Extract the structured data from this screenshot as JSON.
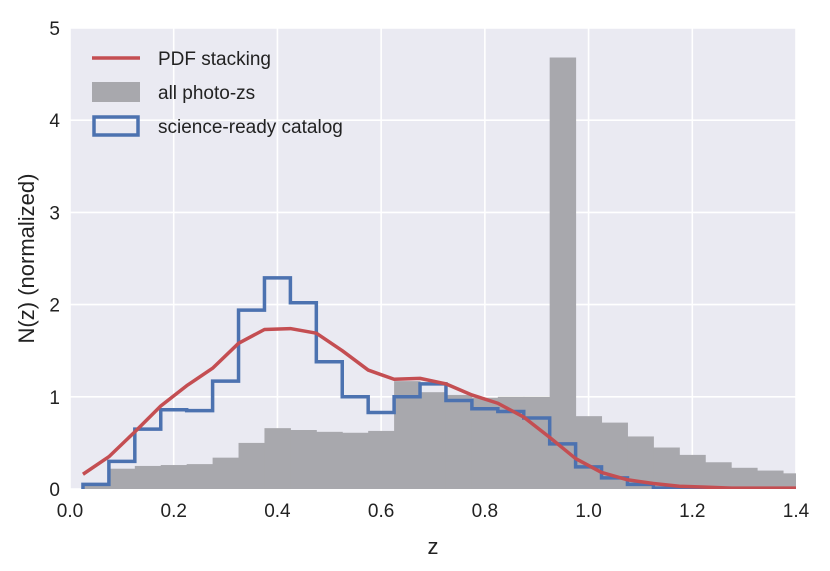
{
  "chart_data": {
    "type": "bar",
    "xlabel": "z",
    "ylabel": "N(z) (normalized)",
    "xlim": [
      0.0,
      1.4
    ],
    "ylim": [
      0,
      5
    ],
    "xticks": [
      "0.0",
      "0.2",
      "0.4",
      "0.6",
      "0.8",
      "1.0",
      "1.2",
      "1.4"
    ],
    "yticks": [
      "0",
      "1",
      "2",
      "3",
      "4",
      "5"
    ],
    "grid": true,
    "legend_position": "top-left",
    "colors": {
      "background": "#eaeaf2",
      "grid": "#ffffff",
      "pdf_stacking": "#c44e52",
      "all_photo_zs": "#a8a8ad",
      "science_ready": "#4c72b0"
    },
    "bin_edges": [
      0.025,
      0.075,
      0.125,
      0.175,
      0.225,
      0.275,
      0.325,
      0.375,
      0.425,
      0.475,
      0.525,
      0.575,
      0.625,
      0.675,
      0.725,
      0.775,
      0.825,
      0.875,
      0.925,
      0.975,
      1.025,
      1.075,
      1.125,
      1.175,
      1.225,
      1.275,
      1.325,
      1.375,
      1.425
    ],
    "series": [
      {
        "name": "PDF stacking",
        "kind": "line",
        "x": [
          0.025,
          0.075,
          0.125,
          0.175,
          0.225,
          0.275,
          0.325,
          0.375,
          0.425,
          0.475,
          0.525,
          0.575,
          0.625,
          0.675,
          0.725,
          0.775,
          0.825,
          0.875,
          0.925,
          0.975,
          1.025,
          1.075,
          1.125,
          1.175,
          1.225,
          1.275,
          1.325,
          1.4
        ],
        "values": [
          0.16,
          0.35,
          0.62,
          0.9,
          1.12,
          1.31,
          1.58,
          1.73,
          1.74,
          1.69,
          1.5,
          1.29,
          1.19,
          1.2,
          1.14,
          1.02,
          0.93,
          0.78,
          0.56,
          0.33,
          0.18,
          0.1,
          0.06,
          0.03,
          0.02,
          0.01,
          0.01,
          0.01
        ]
      },
      {
        "name": "all photo-zs",
        "kind": "bar",
        "values": [
          0.05,
          0.22,
          0.25,
          0.26,
          0.27,
          0.34,
          0.5,
          0.66,
          0.64,
          0.62,
          0.61,
          0.63,
          1.17,
          1.05,
          1.02,
          0.99,
          1.0,
          1.0,
          4.68,
          0.79,
          0.72,
          0.57,
          0.45,
          0.37,
          0.29,
          0.23,
          0.2,
          0.17
        ]
      },
      {
        "name": "science-ready catalog",
        "kind": "step",
        "values": [
          0.05,
          0.3,
          0.65,
          0.86,
          0.85,
          1.17,
          1.94,
          2.29,
          2.02,
          1.38,
          1.0,
          0.83,
          1.0,
          1.14,
          0.96,
          0.87,
          0.84,
          0.77,
          0.49,
          0.24,
          0.12,
          0.05,
          0.01,
          0.0,
          0.0,
          0.0,
          0.0,
          0.0
        ]
      }
    ]
  }
}
